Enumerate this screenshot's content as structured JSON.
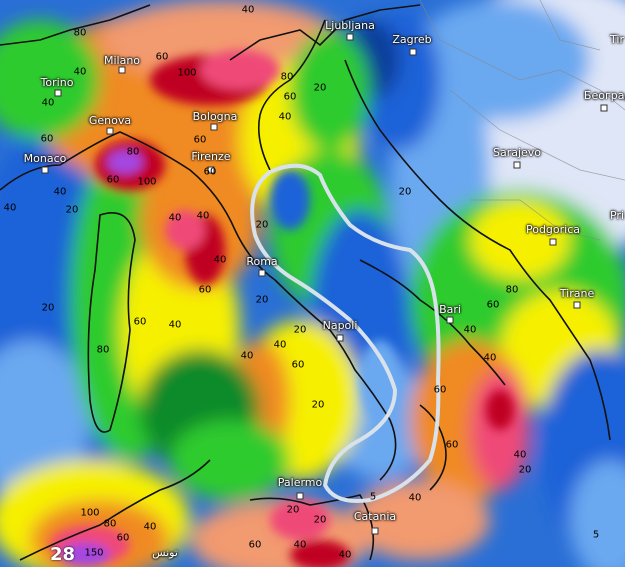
{
  "map": {
    "cities": [
      "Ljubljana",
      "Zagreb",
      "Milano",
      "Torino",
      "Bologna",
      "Genova",
      "Monaco",
      "Firenze",
      "Sarajevo",
      "Београд",
      "Podgorica",
      "Tirane",
      "Roma",
      "Bari",
      "Napoli",
      "Palermo",
      "Catania",
      "تونس",
      "Tir",
      "Pri"
    ],
    "contour_labels": [
      "40",
      "80",
      "60",
      "40",
      "100",
      "80",
      "60",
      "40",
      "20",
      "60",
      "40",
      "60",
      "80",
      "100",
      "60",
      "40",
      "60",
      "40",
      "20",
      "20",
      "40",
      "20",
      "60",
      "80",
      "40",
      "20",
      "40",
      "60",
      "40",
      "20",
      "40",
      "20",
      "20",
      "40",
      "60",
      "40",
      "40",
      "60",
      "80",
      "60",
      "40",
      "20",
      "100",
      "80",
      "40",
      "60",
      "150",
      "5",
      "40",
      "60",
      "40",
      "20",
      "5",
      "20",
      "60",
      "40"
    ],
    "partial_label": "28",
    "highlight_outline_color": "#d8e2ea",
    "legend_colors": {
      "pale": "#dfe6f7",
      "light_blue": "#6aa8f0",
      "blue": "#1f62d8",
      "dark_blue": "#0c3e9a",
      "dark_green": "#0b8a2c",
      "green": "#2fcb2f",
      "light_green": "#9be030",
      "yellow": "#f6f000",
      "orange": "#f08a20",
      "salmon": "#f29a70",
      "pink": "#ef4a78",
      "dark_red": "#c00022",
      "purple": "#a446e2"
    }
  }
}
